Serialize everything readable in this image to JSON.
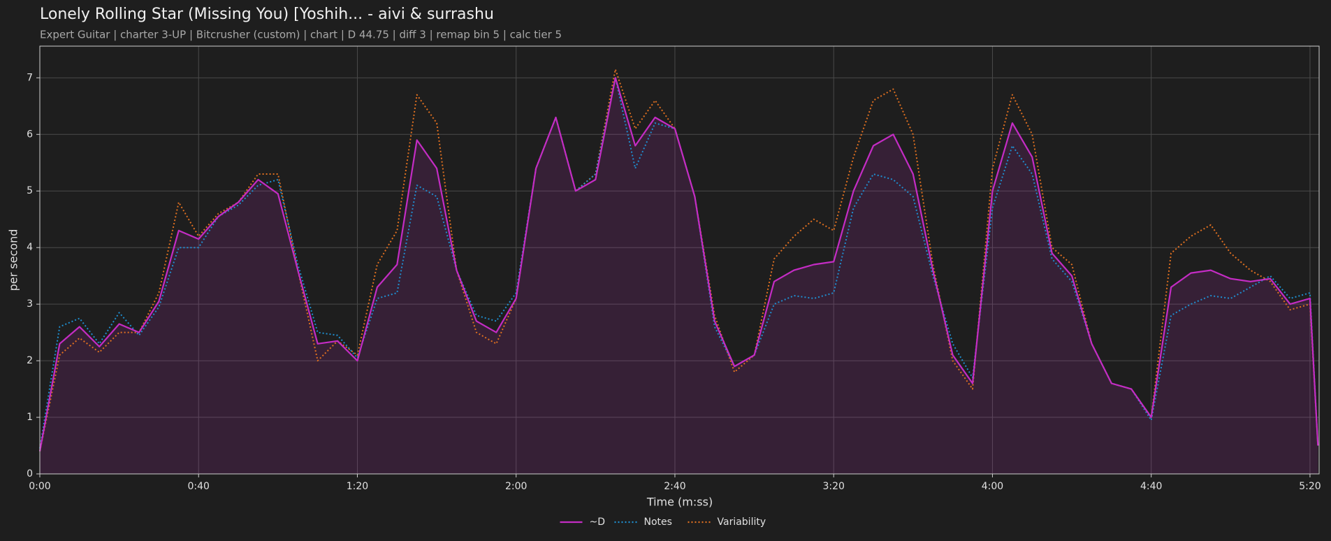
{
  "chart_data": {
    "type": "line",
    "title": "Lonely Rolling Star (Missing You) [Yoshih... - aivi & surrashu",
    "subtitle": "Expert Guitar  |  charter 3-UP  |  Bitcrusher (custom)  |  chart  |  D 44.75  |  diff 3  |  remap bin 5  |  calc tier 5",
    "xlabel": "Time (m:ss)",
    "ylabel": "per second",
    "x": [
      0,
      5,
      10,
      15,
      20,
      25,
      30,
      35,
      40,
      45,
      50,
      55,
      60,
      65,
      70,
      75,
      80,
      85,
      90,
      95,
      100,
      105,
      110,
      115,
      120,
      125,
      130,
      135,
      140,
      145,
      150,
      155,
      160,
      165,
      170,
      175,
      180,
      185,
      190,
      195,
      200,
      205,
      210,
      215,
      220,
      225,
      230,
      235,
      240,
      245,
      250,
      255,
      260,
      265,
      270,
      275,
      280,
      285,
      290,
      295,
      300,
      305,
      310,
      315,
      320,
      322
    ],
    "series": [
      {
        "name": "~D",
        "color": "#c42cc4",
        "dash": "solid",
        "fill": true,
        "values": [
          0.4,
          2.3,
          2.6,
          2.25,
          2.65,
          2.5,
          3.05,
          4.3,
          4.15,
          4.55,
          4.8,
          5.2,
          4.95,
          3.6,
          2.3,
          2.35,
          2.0,
          3.3,
          3.7,
          5.9,
          5.4,
          3.6,
          2.7,
          2.5,
          3.1,
          5.4,
          6.3,
          5.0,
          5.2,
          7.0,
          5.8,
          6.3,
          6.1,
          4.9,
          2.7,
          1.9,
          2.1,
          3.4,
          3.6,
          3.7,
          3.75,
          5.0,
          5.8,
          6.0,
          5.3,
          3.6,
          2.1,
          1.6,
          5.0,
          6.2,
          5.6,
          3.9,
          3.5,
          2.3,
          1.6,
          1.5,
          1.0,
          3.3,
          3.55,
          3.6,
          3.45,
          3.4,
          3.45,
          3.0,
          3.1,
          0.5
        ]
      },
      {
        "name": "Notes",
        "color": "#1f8fd0",
        "dash": "dotted",
        "fill": false,
        "values": [
          0.45,
          2.6,
          2.75,
          2.3,
          2.85,
          2.45,
          2.95,
          4.0,
          4.0,
          4.55,
          4.75,
          5.1,
          5.2,
          3.7,
          2.5,
          2.45,
          2.05,
          3.1,
          3.2,
          5.1,
          4.9,
          3.6,
          2.8,
          2.7,
          3.2,
          5.4,
          6.3,
          5.0,
          5.3,
          7.0,
          5.4,
          6.2,
          6.1,
          4.9,
          2.6,
          1.9,
          2.1,
          3.0,
          3.15,
          3.1,
          3.2,
          4.7,
          5.3,
          5.2,
          4.9,
          3.5,
          2.3,
          1.7,
          4.7,
          5.8,
          5.3,
          3.8,
          3.4,
          2.3,
          1.6,
          1.5,
          0.95,
          2.8,
          3.0,
          3.15,
          3.1,
          3.3,
          3.5,
          3.1,
          3.2,
          0.5
        ]
      },
      {
        "name": "Variability",
        "color": "#e07020",
        "dash": "dotted",
        "fill": false,
        "values": [
          0.4,
          2.1,
          2.4,
          2.15,
          2.5,
          2.5,
          3.2,
          4.8,
          4.2,
          4.6,
          4.8,
          5.3,
          5.3,
          3.6,
          2.0,
          2.35,
          2.1,
          3.7,
          4.3,
          6.7,
          6.2,
          3.6,
          2.5,
          2.3,
          3.1,
          5.4,
          6.3,
          5.0,
          5.3,
          7.15,
          6.1,
          6.6,
          6.1,
          4.9,
          2.8,
          1.8,
          2.1,
          3.8,
          4.2,
          4.5,
          4.3,
          5.6,
          6.6,
          6.8,
          6.0,
          3.7,
          2.0,
          1.5,
          5.4,
          6.7,
          6.0,
          4.0,
          3.7,
          2.3,
          1.6,
          1.5,
          1.0,
          3.9,
          4.2,
          4.4,
          3.9,
          3.6,
          3.4,
          2.9,
          3.0,
          0.5
        ]
      }
    ],
    "xlim": [
      0,
      322.3
    ],
    "xticks": [
      {
        "value": 0,
        "label": "0:00"
      },
      {
        "value": 40,
        "label": "0:40"
      },
      {
        "value": 80,
        "label": "1:20"
      },
      {
        "value": 120,
        "label": "2:00"
      },
      {
        "value": 160,
        "label": "2:40"
      },
      {
        "value": 200,
        "label": "3:20"
      },
      {
        "value": 240,
        "label": "4:00"
      },
      {
        "value": 280,
        "label": "4:40"
      },
      {
        "value": 320,
        "label": "5:20"
      }
    ],
    "ylim": [
      0,
      7.56
    ],
    "yticks": [
      0,
      1,
      2,
      3,
      4,
      5,
      6,
      7
    ],
    "grid": true,
    "legend": "bottom"
  }
}
